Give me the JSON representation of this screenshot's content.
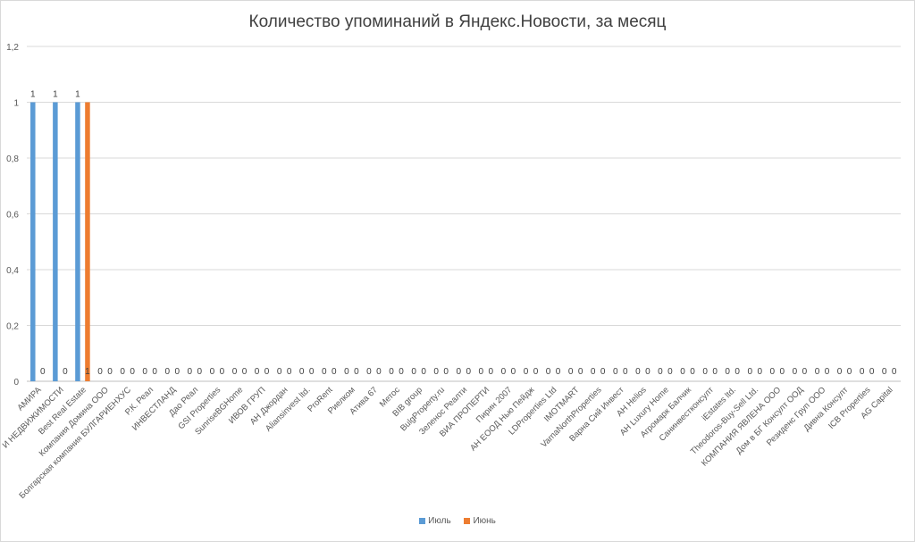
{
  "chart_data": {
    "type": "bar",
    "title": "Количество упоминаний в Яндекс.Новости, за месяц",
    "xlabel": "",
    "ylabel": "",
    "ylim": [
      0,
      1.2
    ],
    "y_ticks": [
      "0",
      "0,2",
      "0,4",
      "0,6",
      "0,8",
      "1",
      "1,2"
    ],
    "grid": true,
    "legend": "bottom",
    "categories": [
      "АМИРА",
      "И НЕДВИЖИМОСТИ",
      "Best Real Estate",
      "Компания Домина ООО",
      "Болгарская компания БУЛГАРИЕНХУС",
      "Р.К. Реал",
      "ИНВЕСТЛАНД",
      "Дао Реал",
      "GSI Properties",
      "SunriseBGHome",
      "ИВОВ ГРУП",
      "АН Джордан",
      "Aliansinvest ltd.",
      "ProRent",
      "Риелком",
      "Атива 67",
      "Метос",
      "BIB group",
      "BulgProperty.ru",
      "Зеленос Реалти",
      "ВИА ПРОПЕРТИ",
      "Пирин 2007",
      "АН ЕООД Нью Пейдж",
      "LDProperties Ltd",
      "IMOTMART",
      "VarnaNorthProperties",
      "Варна Сий Инвест",
      "АН Helios",
      "АН Luxury Home",
      "Агромарк Балчик",
      "Санинвестконсулт",
      "iEstates ltd.",
      "Theodoros-Buy-Sell Ltd.",
      "КОМПАНИЯ ЯВЛЕНА ООО",
      "Дом в БГ Консулт ООД",
      "Резиденс Груп ООО",
      "Дивна Консулт",
      "ICB Properties",
      "AG Capital"
    ],
    "series": [
      {
        "name": "Июль",
        "color": "#5b9bd5",
        "values": [
          1,
          1,
          1,
          0,
          0,
          0,
          0,
          0,
          0,
          0,
          0,
          0,
          0,
          0,
          0,
          0,
          0,
          0,
          0,
          0,
          0,
          0,
          0,
          0,
          0,
          0,
          0,
          0,
          0,
          0,
          0,
          0,
          0,
          0,
          0,
          0,
          0,
          0,
          0
        ]
      },
      {
        "name": "Июнь",
        "color": "#ed7d31",
        "values": [
          0,
          0,
          1,
          0,
          0,
          0,
          0,
          0,
          0,
          0,
          0,
          0,
          0,
          0,
          0,
          0,
          0,
          0,
          0,
          0,
          0,
          0,
          0,
          0,
          0,
          0,
          0,
          0,
          0,
          0,
          0,
          0,
          0,
          0,
          0,
          0,
          0,
          0,
          0
        ]
      }
    ]
  }
}
